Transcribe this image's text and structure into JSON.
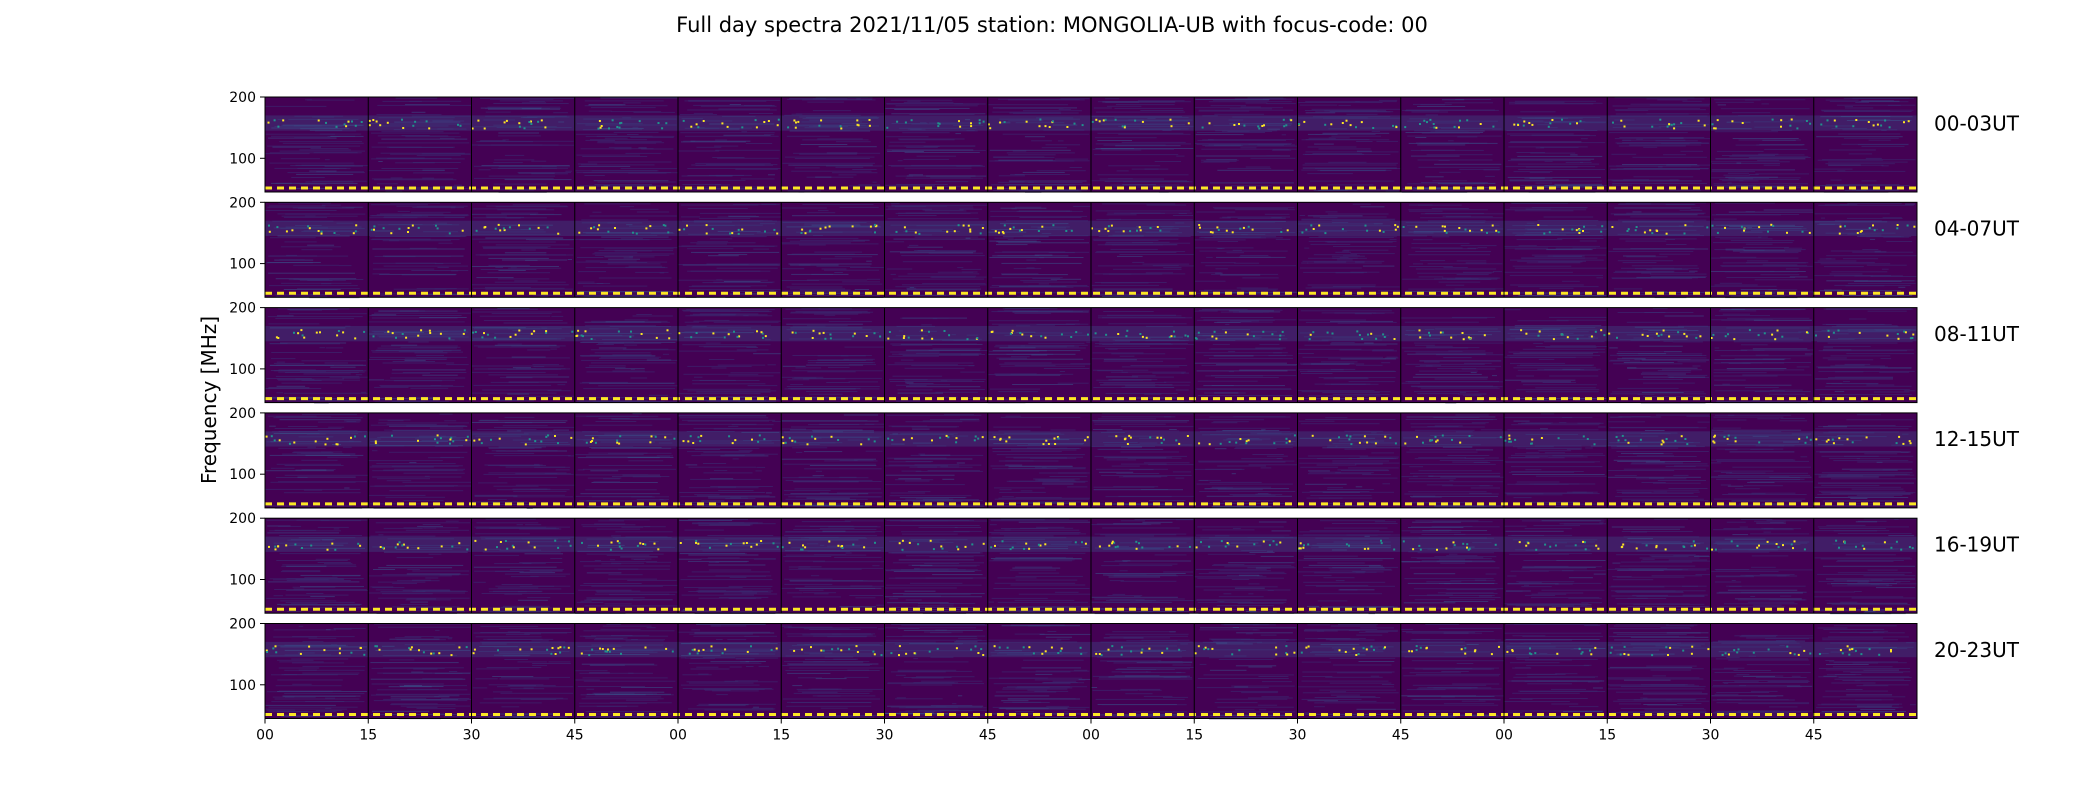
{
  "chart_data": {
    "type": "heatmap",
    "title": "Full day spectra 2021/11/05 station: MONGOLIA-UB with focus-code: 00",
    "ylabel": "Frequency [MHz]",
    "ylim": [
      45,
      200
    ],
    "ytick_labels": [
      "100",
      "200"
    ],
    "ytick_values": [
      100,
      200
    ],
    "xtick_labels": [
      "00",
      "15",
      "30",
      "45",
      "00",
      "15",
      "30",
      "45",
      "00",
      "15",
      "30",
      "45",
      "00",
      "15",
      "30",
      "45"
    ],
    "panels_per_row": 16,
    "panel_minutes": 15,
    "colormap": [
      "#440154",
      "#3b528b",
      "#21918c",
      "#5ec962",
      "#fde725"
    ],
    "rows": [
      {
        "label": "00-03UT"
      },
      {
        "label": "04-07UT"
      },
      {
        "label": "08-11UT"
      },
      {
        "label": "12-15UT"
      },
      {
        "label": "16-19UT"
      },
      {
        "label": "20-23UT"
      }
    ]
  }
}
